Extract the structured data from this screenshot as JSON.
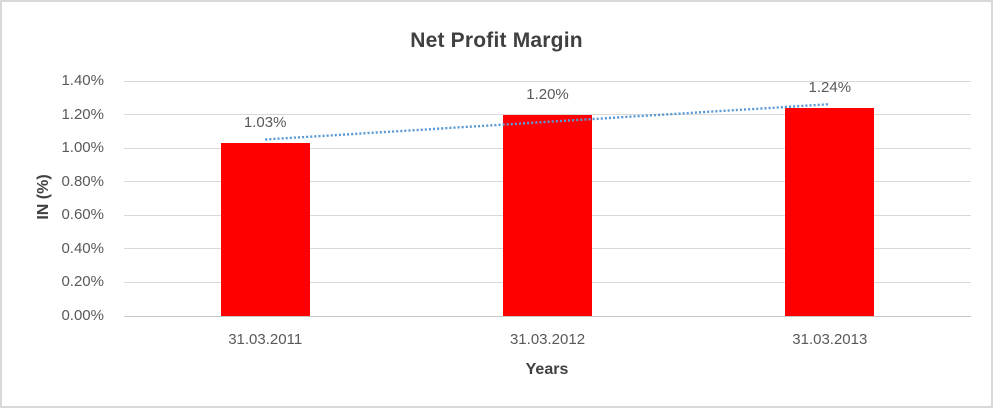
{
  "chart_data": {
    "type": "bar",
    "title": "Net Profit Margin",
    "xlabel": "Years",
    "ylabel": "IN (%)",
    "categories": [
      "31.03.2011",
      "31.03.2012",
      "31.03.2013"
    ],
    "values": [
      1.03,
      1.2,
      1.24
    ],
    "data_labels": [
      "1.03%",
      "1.20%",
      "1.24%"
    ],
    "ylim": [
      0,
      1.4
    ],
    "ytick_step": 0.2,
    "ytick_labels": [
      "0.00%",
      "0.20%",
      "0.40%",
      "0.60%",
      "0.80%",
      "1.00%",
      "1.20%",
      "1.40%"
    ],
    "grid": true,
    "legend": "none",
    "trendline": {
      "type": "linear",
      "style": "dotted"
    },
    "colors": {
      "bar": "#ff0000",
      "trendline": "#5b9bd5",
      "gridline": "#d9d9d9",
      "axis_line": "#c6c6c6",
      "title_text": "#404040",
      "label_text": "#595959",
      "border": "#d9d9d9",
      "background": "#ffffff"
    }
  }
}
